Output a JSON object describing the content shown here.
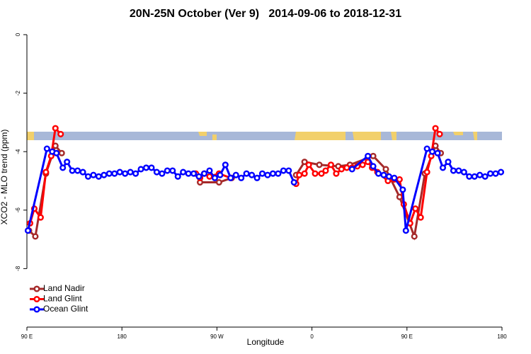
{
  "chart_data": {
    "type": "line",
    "title": "20N-25N October (Ver 9)   2014-09-06 to 2018-12-31",
    "xlabel": "Longitude",
    "ylabel": "XCO2 - MLO trend (ppm)",
    "xlim": [
      90,
      540
    ],
    "ylim": [
      -10,
      0.2
    ],
    "xticks": [
      {
        "value": 90,
        "label": "90 E"
      },
      180,
      {
        "value": 270,
        "label": "90 W"
      },
      {
        "value": 360,
        "label": "0"
      },
      {
        "value": 450,
        "label": "90 E"
      },
      {
        "value": 540,
        "label": "180"
      }
    ],
    "yticks": [
      0,
      -2,
      -4,
      -6,
      -8
    ],
    "legend": "bottom-left",
    "series": [
      {
        "name": "Land Nadir",
        "color": "#a52a2a",
        "x": [
          92,
          98,
          108,
          117,
          123,
          null,
          254,
          272,
          284,
          null,
          345,
          353,
          367,
          385,
          396,
          418,
          430,
          443,
          457,
          467,
          477,
          482
        ],
        "values": [
          -6.7,
          -6.9,
          -4.75,
          -3.8,
          -4.05,
          null,
          -5.05,
          -5.05,
          -4.9,
          null,
          -4.8,
          -4.35,
          -4.45,
          -4.5,
          -4.45,
          -4.15,
          -4.6,
          -5.55,
          -6.9,
          -4.75,
          -3.8,
          -4.05
        ]
      },
      {
        "name": "Land Glint",
        "color": "#ff0000",
        "x": [
          93,
          97,
          103,
          108,
          113,
          117,
          122,
          null,
          250,
          254,
          258,
          263,
          272,
          283,
          null,
          345,
          348,
          353,
          357,
          363,
          369,
          373,
          378,
          383,
          388,
          393,
          398,
          403,
          408,
          413,
          417,
          422,
          432,
          438,
          443,
          447,
          453,
          458,
          463,
          469,
          473,
          477,
          481
        ],
        "values": [
          -6.45,
          -5.95,
          -6.25,
          -4.7,
          -4.15,
          -3.2,
          -3.4,
          null,
          -4.75,
          -4.9,
          -4.75,
          -4.85,
          -4.75,
          -4.9,
          null,
          -5.1,
          -4.8,
          -4.75,
          -4.45,
          -4.75,
          -4.75,
          -4.65,
          -4.45,
          -4.75,
          -4.6,
          -4.55,
          -4.55,
          -4.5,
          -4.45,
          -4.35,
          -4.55,
          -4.7,
          -5.0,
          -4.95,
          -4.95,
          -5.8,
          -6.45,
          -5.95,
          -6.25,
          -4.7,
          -4.15,
          -3.2,
          -3.4
        ]
      },
      {
        "name": "Ocean Glint",
        "color": "#0000ff",
        "x": [
          91,
          109,
          114,
          118,
          124,
          128,
          133,
          138,
          143,
          148,
          153,
          158,
          163,
          168,
          173,
          178,
          183,
          188,
          193,
          198,
          203,
          208,
          213,
          218,
          223,
          228,
          233,
          238,
          243,
          248,
          253,
          258,
          263,
          268,
          273,
          278,
          283,
          288,
          293,
          298,
          303,
          308,
          313,
          318,
          323,
          328,
          333,
          338,
          343,
          null,
          398,
          413,
          418,
          423,
          428,
          433,
          438,
          446,
          449,
          469,
          474,
          479,
          484,
          489,
          494,
          499,
          504,
          509,
          514,
          519,
          524,
          529,
          534,
          539
        ],
        "values": [
          -6.7,
          -3.9,
          -4.0,
          -4.05,
          -4.55,
          -4.35,
          -4.65,
          -4.65,
          -4.7,
          -4.85,
          -4.8,
          -4.85,
          -4.8,
          -4.75,
          -4.75,
          -4.7,
          -4.75,
          -4.7,
          -4.75,
          -4.6,
          -4.55,
          -4.55,
          -4.7,
          -4.75,
          -4.65,
          -4.65,
          -4.85,
          -4.7,
          -4.75,
          -4.75,
          -4.85,
          -4.75,
          -4.65,
          -4.9,
          -4.8,
          -4.45,
          -4.9,
          -4.8,
          -4.9,
          -4.75,
          -4.8,
          -4.9,
          -4.75,
          -4.8,
          -4.75,
          -4.75,
          -4.65,
          -4.65,
          -5.05,
          null,
          -4.6,
          -4.15,
          -4.5,
          -4.75,
          -4.8,
          -4.85,
          -4.9,
          -5.3,
          -6.7,
          -3.9,
          -4.0,
          -4.05,
          -4.55,
          -4.35,
          -4.65,
          -4.65,
          -4.7,
          -4.85,
          -4.85,
          -4.8,
          -4.85,
          -4.75,
          -4.75,
          -4.7
        ]
      }
    ]
  }
}
